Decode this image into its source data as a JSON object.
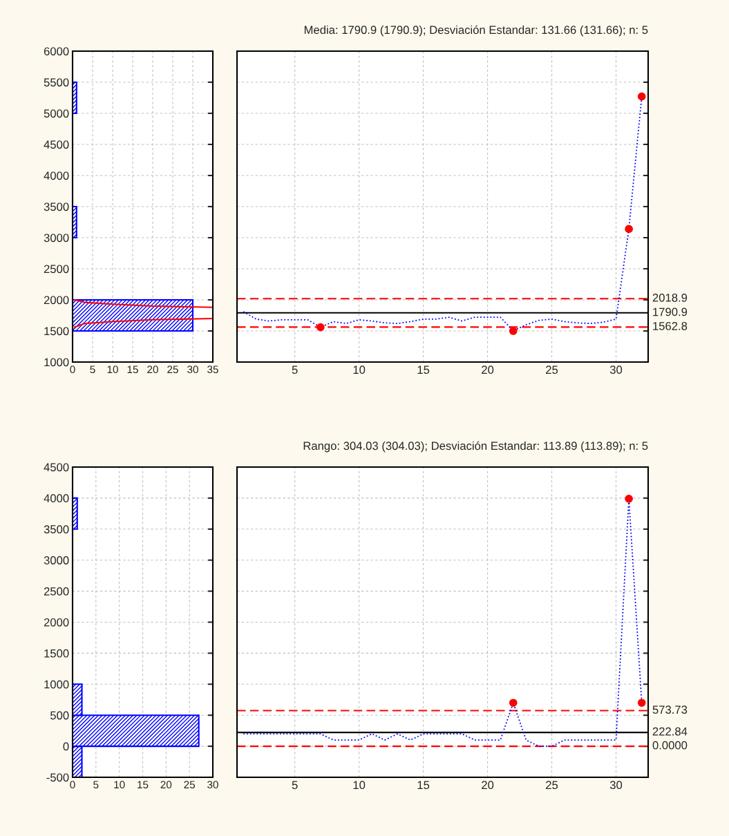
{
  "chart_data": [
    {
      "type": "histogram",
      "orientation": "horizontal",
      "bins": [
        1000,
        1500,
        2000,
        2500,
        3000,
        3500,
        4000,
        4500,
        5000,
        5500,
        6000
      ],
      "values": [
        0,
        30,
        0,
        0,
        1,
        0,
        0,
        0,
        1,
        0
      ],
      "color": "#0000ff",
      "series": [
        {
          "type": "line",
          "color": "#ff0000",
          "x": [
            1560,
            1620,
            1650,
            1680,
            1700,
            null,
            1880,
            1900,
            1930,
            1960,
            2000
          ],
          "values": [
            0.5,
            3,
            10,
            20,
            35,
            null,
            35,
            20,
            10,
            3,
            0.5
          ]
        }
      ],
      "xlim": [
        0,
        35
      ],
      "xticks": [
        0,
        5,
        10,
        15,
        20,
        25,
        30,
        35
      ],
      "ylim": [
        1000,
        6000
      ],
      "yticks": [
        1000,
        1500,
        2000,
        2500,
        3000,
        3500,
        4000,
        4500,
        5000,
        5500,
        6000
      ],
      "grid": true
    },
    {
      "type": "line",
      "title": "Media: 1790.9 (1790.9); Desviación Estandar: 131.66 (131.66); n: 5",
      "x": [
        1,
        2,
        3,
        4,
        5,
        6,
        7,
        8,
        9,
        10,
        11,
        12,
        13,
        14,
        15,
        16,
        17,
        18,
        19,
        20,
        21,
        22,
        23,
        24,
        25,
        26,
        27,
        28,
        29,
        30,
        31,
        32
      ],
      "series": [
        {
          "type": "line",
          "color": "#0000ff",
          "line_style": "dotted",
          "values": [
            1810,
            1690,
            1660,
            1680,
            1680,
            1680,
            1560,
            1650,
            1620,
            1680,
            1660,
            1630,
            1620,
            1650,
            1690,
            1690,
            1720,
            1660,
            1720,
            1720,
            1720,
            1500,
            1600,
            1670,
            1690,
            1650,
            1630,
            1620,
            1640,
            1690,
            3140,
            5270
          ]
        },
        {
          "type": "scatter",
          "color": "#ff0000",
          "marker": "circle",
          "x": [
            7,
            22,
            31,
            32
          ],
          "values": [
            1560,
            1500,
            3140,
            5270
          ]
        }
      ],
      "ref_lines": [
        {
          "axis": "y",
          "value": 2018.9,
          "label": "2018.9",
          "color": "#ff0000",
          "line_style": "dashed"
        },
        {
          "axis": "y",
          "value": 1790.9,
          "label": "1790.9",
          "color": "#000000",
          "line_style": "solid"
        },
        {
          "axis": "y",
          "value": 1562.8,
          "label": "1562.8",
          "color": "#ff0000",
          "line_style": "dashed"
        }
      ],
      "xlim": [
        0.5,
        32.5
      ],
      "xticks": [
        5,
        10,
        15,
        20,
        25,
        30
      ],
      "ylim": [
        1000,
        6000
      ],
      "yticks": [
        1000,
        1500,
        2000,
        2500,
        3000,
        3500,
        4000,
        4500,
        5000,
        5500,
        6000
      ],
      "tick_labels": "x",
      "grid": true
    },
    {
      "type": "histogram",
      "orientation": "horizontal",
      "bins": [
        -500,
        0,
        500,
        1000,
        1500,
        2000,
        2500,
        3000,
        3500,
        4000,
        4500
      ],
      "values": [
        2,
        27,
        2,
        0,
        0,
        0,
        0,
        0,
        1,
        0
      ],
      "color": "#0000ff",
      "xlim": [
        0,
        30
      ],
      "xticks": [
        0,
        5,
        10,
        15,
        20,
        25,
        30
      ],
      "ylim": [
        -500,
        4500
      ],
      "yticks": [
        -500,
        0,
        500,
        1000,
        1500,
        2000,
        2500,
        3000,
        3500,
        4000,
        4500
      ],
      "grid": true
    },
    {
      "type": "line",
      "title": "Rango: 304.03 (304.03); Desviación Estandar: 113.89 (113.89); n: 5",
      "x": [
        1,
        2,
        3,
        4,
        5,
        6,
        7,
        8,
        9,
        10,
        11,
        12,
        13,
        14,
        15,
        16,
        17,
        18,
        19,
        20,
        21,
        22,
        23,
        24,
        25,
        26,
        27,
        28,
        29,
        30,
        31,
        32
      ],
      "series": [
        {
          "type": "line",
          "color": "#0000ff",
          "line_style": "dotted",
          "values": [
            200,
            200,
            200,
            200,
            200,
            200,
            200,
            100,
            100,
            100,
            200,
            100,
            200,
            100,
            200,
            200,
            200,
            200,
            100,
            100,
            100,
            700,
            100,
            0,
            0,
            100,
            100,
            100,
            100,
            100,
            3990,
            700
          ]
        },
        {
          "type": "scatter",
          "color": "#ff0000",
          "marker": "circle",
          "x": [
            22,
            31,
            32
          ],
          "values": [
            700,
            3990,
            700
          ]
        }
      ],
      "ref_lines": [
        {
          "axis": "y",
          "value": 573.73,
          "label": "573.73",
          "color": "#ff0000",
          "line_style": "dashed"
        },
        {
          "axis": "y",
          "value": 222.84,
          "label": "222.84",
          "color": "#000000",
          "line_style": "solid"
        },
        {
          "axis": "y",
          "value": 0.0,
          "label": "0.0000",
          "color": "#ff0000",
          "line_style": "dashed"
        }
      ],
      "xlim": [
        0.5,
        32.5
      ],
      "xticks": [
        5,
        10,
        15,
        20,
        25,
        30
      ],
      "ylim": [
        -500,
        4500
      ],
      "yticks": [
        -500,
        0,
        500,
        1000,
        1500,
        2000,
        2500,
        3000,
        3500,
        4000,
        4500
      ],
      "tick_labels": "x",
      "grid": true
    }
  ]
}
